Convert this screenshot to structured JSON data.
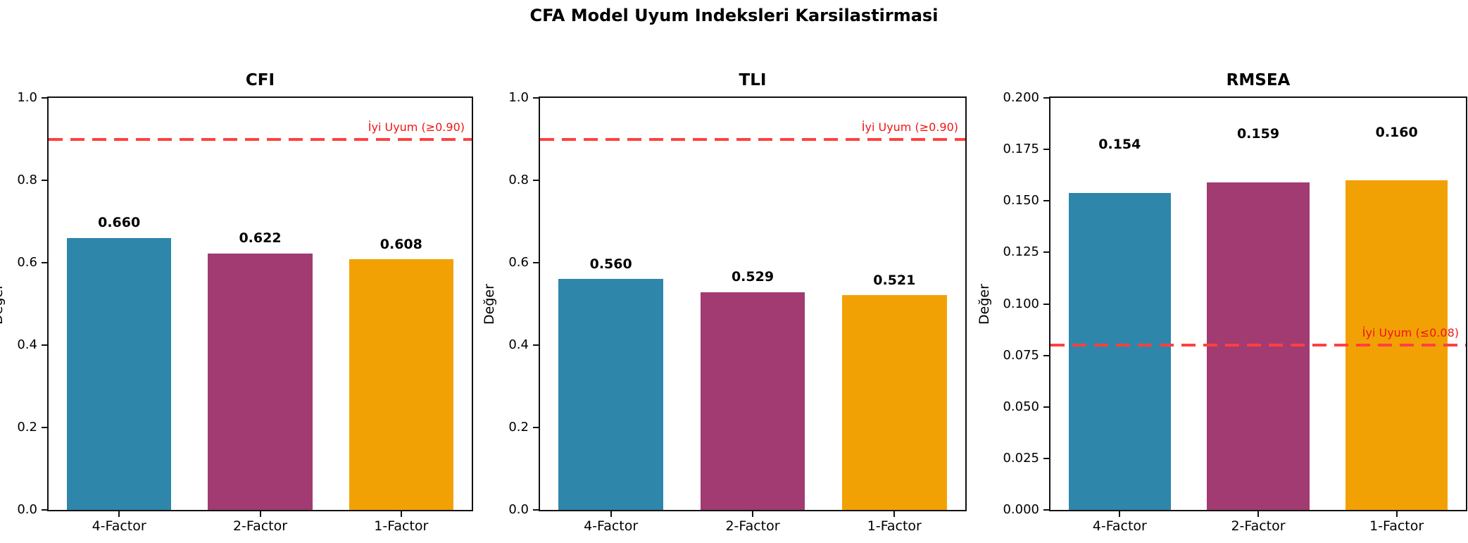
{
  "figure": {
    "title": "CFA Model Uyum Indeksleri Karsilastirmasi"
  },
  "colors": {
    "bar_palette": [
      "#2E86AB",
      "#A23B72",
      "#F2A104"
    ],
    "threshold_line": "#FF4040",
    "threshold_text": "#F01515",
    "axis": "#111111",
    "text": "#000000",
    "background": "#FFFFFF"
  },
  "chart_data": [
    {
      "type": "bar",
      "title": "CFI",
      "ylabel": "Değer",
      "categories": [
        "4-Factor",
        "2-Factor",
        "1-Factor"
      ],
      "values": [
        0.66,
        0.622,
        0.608
      ],
      "value_labels": [
        "0.660",
        "0.622",
        "0.608"
      ],
      "ylim": [
        0.0,
        1.0
      ],
      "yticks": [
        0.0,
        0.2,
        0.4,
        0.6,
        0.8,
        1.0
      ],
      "ytick_labels": [
        "0.0",
        "0.2",
        "0.4",
        "0.6",
        "0.8",
        "1.0"
      ],
      "grid": false,
      "legend": null,
      "threshold": {
        "value": 0.9,
        "label": "İyi Uyum (≥0.90)"
      }
    },
    {
      "type": "bar",
      "title": "TLI",
      "ylabel": "Değer",
      "categories": [
        "4-Factor",
        "2-Factor",
        "1-Factor"
      ],
      "values": [
        0.56,
        0.529,
        0.521
      ],
      "value_labels": [
        "0.560",
        "0.529",
        "0.521"
      ],
      "ylim": [
        0.0,
        1.0
      ],
      "yticks": [
        0.0,
        0.2,
        0.4,
        0.6,
        0.8,
        1.0
      ],
      "ytick_labels": [
        "0.0",
        "0.2",
        "0.4",
        "0.6",
        "0.8",
        "1.0"
      ],
      "grid": false,
      "legend": null,
      "threshold": {
        "value": 0.9,
        "label": "İyi Uyum (≥0.90)"
      }
    },
    {
      "type": "bar",
      "title": "RMSEA",
      "ylabel": "Değer",
      "categories": [
        "4-Factor",
        "2-Factor",
        "1-Factor"
      ],
      "values": [
        0.154,
        0.159,
        0.16
      ],
      "value_labels": [
        "0.154",
        "0.159",
        "0.160"
      ],
      "ylim": [
        0.0,
        0.2
      ],
      "yticks": [
        0.0,
        0.025,
        0.05,
        0.075,
        0.1,
        0.125,
        0.15,
        0.175,
        0.2
      ],
      "ytick_labels": [
        "0.000",
        "0.025",
        "0.050",
        "0.075",
        "0.100",
        "0.125",
        "0.150",
        "0.175",
        "0.200"
      ],
      "grid": false,
      "legend": null,
      "threshold": {
        "value": 0.08,
        "label": "İyi Uyum (≤0.08)"
      }
    }
  ]
}
